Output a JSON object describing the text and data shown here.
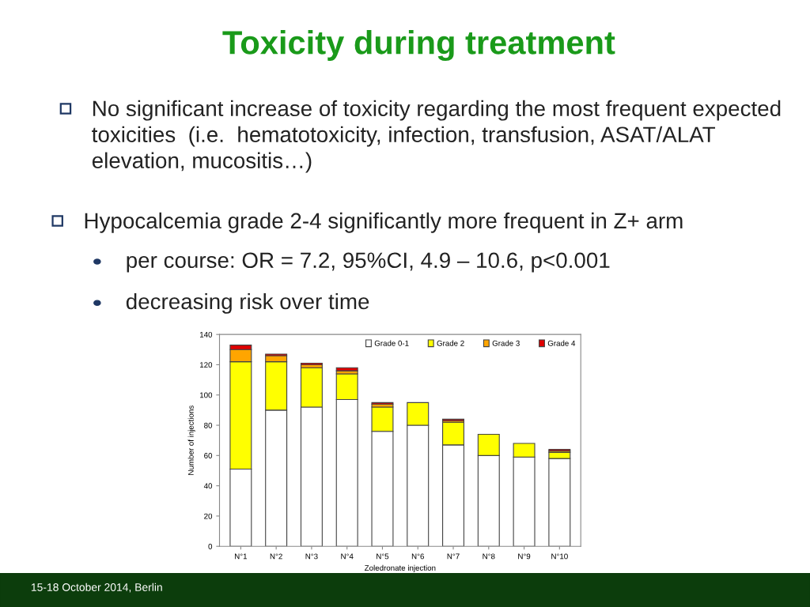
{
  "chart_data": {
    "type": "bar",
    "stacked": true,
    "title": "Toxicity during treatment",
    "xlabel": "Zoledronate injection",
    "ylabel": "Number of injections",
    "categories": [
      "N°1",
      "N°2",
      "N°3",
      "N°4",
      "N°5",
      "N°6",
      "N°7",
      "N°8",
      "N°9",
      "N°10"
    ],
    "series": [
      {
        "name": "Grade 0-1",
        "color": "#ffffff",
        "values": [
          51,
          90,
          92,
          97,
          76,
          80,
          67,
          60,
          59,
          58
        ]
      },
      {
        "name": "Grade 2",
        "color": "#ffff00",
        "values": [
          71,
          32,
          26,
          17,
          16,
          15,
          15,
          14,
          9,
          4
        ]
      },
      {
        "name": "Grade 3",
        "color": "#ffa500",
        "values": [
          8,
          4,
          2,
          2,
          2,
          null,
          1,
          null,
          null,
          1
        ]
      },
      {
        "name": "Grade 4",
        "color": "#e00000",
        "values": [
          3,
          1,
          1,
          2,
          1,
          null,
          1,
          null,
          null,
          1
        ]
      }
    ],
    "ylim": [
      0,
      140
    ],
    "yticks": [
      0,
      20,
      40,
      60,
      80,
      100,
      120,
      140
    ],
    "grid": false,
    "legend": "top right",
    "annotations": [
      "No significant increase of toxicity regarding the most frequent expected toxicities  (i.e.  hematotoxicity, infection, transfusion, ASAT/ALAT elevation, mucositis…)",
      "Hypocalcemia grade 2-4 significantly more frequent in Z+ arm",
      "per course: OR = 7.2, 95%CI, 4.9 – 10.6, p<0.001",
      "decreasing risk over time",
      "15-18 October 2014, Berlin"
    ]
  }
}
